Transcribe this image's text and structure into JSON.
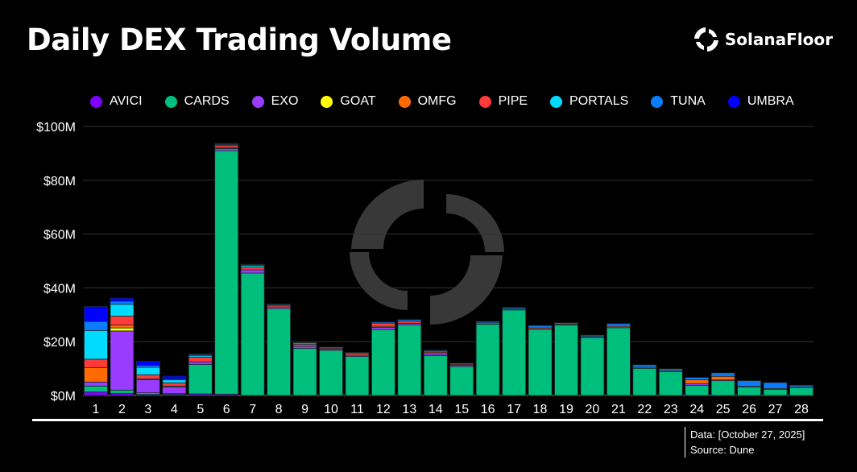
{
  "title": "Daily DEX Trading Volume",
  "brand": "SolanaFloor",
  "footer": {
    "data": "Data: [October 27, 2025]",
    "source": "Source: Dune"
  },
  "colors": {
    "AVICI": "#7f00ff",
    "CARDS": "#00bf7d",
    "EXO": "#9a3cff",
    "GOAT": "#ffff00",
    "OMFG": "#ff6a00",
    "PIPE": "#ff3a3a",
    "PORTALS": "#00dcff",
    "TUNA": "#0a7cff",
    "UMBRA": "#0000ff"
  },
  "chart_data": {
    "type": "bar",
    "stacked": true,
    "title": "Daily DEX Trading Volume",
    "xlabel": "",
    "ylabel": "",
    "ylim": [
      0,
      100
    ],
    "yticks": [
      "$0M",
      "$20M",
      "$40M",
      "$60M",
      "$80M",
      "$100M"
    ],
    "grid": true,
    "legend": "top",
    "categories": [
      "1",
      "2",
      "3",
      "4",
      "5",
      "6",
      "7",
      "8",
      "9",
      "10",
      "11",
      "12",
      "13",
      "14",
      "15",
      "16",
      "17",
      "18",
      "19",
      "20",
      "21",
      "22",
      "23",
      "24",
      "25",
      "26",
      "27",
      "28"
    ],
    "series": [
      {
        "name": "AVICI",
        "values": [
          1.3,
          0.8,
          0.4,
          0.4,
          0.6,
          0.5,
          0,
          0,
          0,
          0,
          0,
          0,
          0,
          0,
          0,
          0,
          0,
          0,
          0,
          0,
          0,
          0,
          0,
          0,
          0,
          0,
          0,
          0
        ]
      },
      {
        "name": "CARDS",
        "values": [
          2.2,
          1.2,
          0.6,
          0.3,
          10.9,
          90.5,
          45.5,
          32.3,
          17.5,
          16.8,
          14.5,
          24.5,
          26.3,
          14.8,
          10.8,
          26.5,
          31.8,
          24.6,
          26.2,
          21.6,
          25.2,
          10.1,
          8.8,
          3.7,
          5.5,
          3.1,
          2.3,
          3.0
        ]
      },
      {
        "name": "EXO",
        "values": [
          1.5,
          22,
          4.9,
          2.5,
          1,
          0.8,
          1.2,
          0.6,
          0.8,
          0.4,
          0.5,
          0.8,
          0.5,
          0.7,
          0.4,
          0,
          0,
          0,
          0,
          0,
          0,
          0,
          0,
          0.7,
          0.3,
          0,
          0,
          0
        ]
      },
      {
        "name": "GOAT",
        "values": [
          0,
          1.1,
          0,
          0,
          0,
          0,
          0,
          0,
          0,
          0,
          0,
          0,
          0,
          0,
          0,
          0,
          0,
          0,
          0,
          0,
          0,
          0,
          0,
          0,
          0,
          0,
          0,
          0
        ]
      },
      {
        "name": "OMFG",
        "values": [
          5.3,
          1.1,
          0.3,
          0.3,
          0,
          0.3,
          0,
          0,
          0,
          0,
          0,
          0.4,
          0,
          0,
          0,
          0,
          0,
          0,
          0,
          0,
          0,
          0.4,
          0.4,
          1.4,
          1.3,
          0.3,
          0.3,
          0.2
        ]
      },
      {
        "name": "PIPE",
        "values": [
          3.2,
          3.3,
          1.5,
          1.2,
          1.8,
          0.8,
          1,
          0.6,
          0.7,
          0.4,
          0.8,
          1.2,
          0.8,
          0.6,
          0.4,
          0.5,
          0.4,
          0.5,
          0.3,
          0.3,
          0.5,
          0,
          0,
          0,
          0,
          0,
          0,
          0
        ]
      },
      {
        "name": "PORTALS",
        "values": [
          10.6,
          4.4,
          2.8,
          1.1,
          0.6,
          0.3,
          0.6,
          0.2,
          0.5,
          0,
          0,
          0,
          0,
          0.4,
          0,
          0,
          0,
          0,
          0,
          0,
          0,
          0,
          0,
          0,
          0,
          0,
          0,
          0
        ]
      },
      {
        "name": "TUNA",
        "values": [
          3.4,
          1.1,
          0.7,
          0.3,
          0.3,
          0.3,
          0.3,
          0.3,
          0.2,
          0.4,
          0.2,
          0.4,
          0.6,
          0.3,
          0.4,
          0.5,
          0.5,
          0.9,
          0.5,
          0.5,
          1.0,
          0.9,
          0.7,
          0.9,
          1.3,
          2.1,
          2.2,
          0.6
        ]
      },
      {
        "name": "UMBRA",
        "values": [
          5.6,
          1.2,
          1.5,
          1.1,
          0.3,
          0.2,
          0.2,
          0,
          0,
          0,
          0,
          0,
          0,
          0,
          0,
          0,
          0,
          0,
          0,
          0,
          0,
          0,
          0,
          0,
          0,
          0,
          0,
          0
        ]
      }
    ]
  }
}
